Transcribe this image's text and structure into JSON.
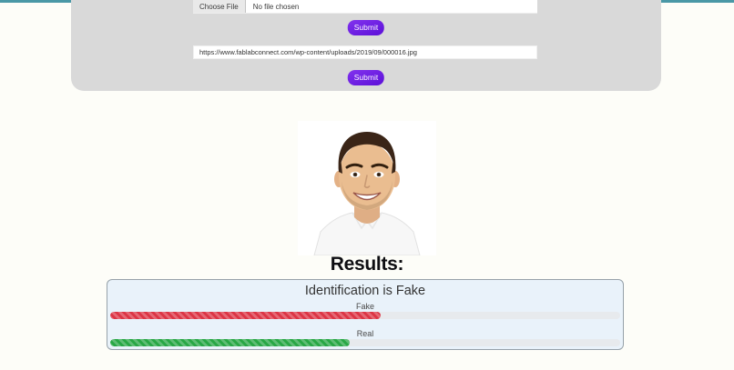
{
  "page": {
    "accent_bar_color": "#4a98a6"
  },
  "upload_form": {
    "file_input": {
      "button_label": "Choose File",
      "status_text": "No file chosen"
    },
    "file_submit_label": "Submit",
    "url_input": {
      "value": "https://www.fablabconnect.com/wp-content/uploads/2019/09/000016.jpg"
    },
    "url_submit_label": "Submit",
    "submit_color": "#6a16e0"
  },
  "results": {
    "heading": "Results:",
    "verdict": "Identification is Fake",
    "bars": [
      {
        "label": "Fake",
        "percent": 53,
        "color": "#dc3545"
      },
      {
        "label": "Real",
        "percent": 47,
        "color": "#28a745"
      }
    ]
  }
}
